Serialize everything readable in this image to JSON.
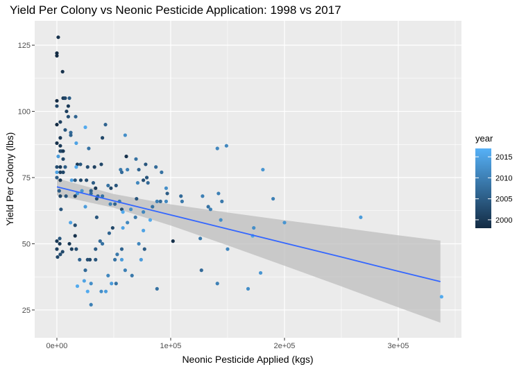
{
  "chart_data": {
    "type": "scatter",
    "title": "Yield Per Colony vs Neonic Pesticide Application: 1998 vs 2017",
    "xlabel": "Neonic Pesticide Applied (kgs)",
    "ylabel": "Yield Per Colony (lbs)",
    "xlim": [
      -19500,
      355500
    ],
    "ylim": [
      14.5,
      134.2
    ],
    "grid": true,
    "x_ticks": [
      0,
      100000,
      200000,
      300000
    ],
    "x_tick_labels": [
      "0e+00",
      "1e+05",
      "2e+05",
      "3e+05"
    ],
    "y_ticks": [
      25,
      50,
      75,
      100,
      125
    ],
    "y_tick_labels": [
      "25",
      "50",
      "75",
      "100",
      "125"
    ],
    "color_legend": {
      "title": "year",
      "range": [
        1998,
        2017
      ],
      "ticks": [
        2000,
        2005,
        2010,
        2015
      ],
      "tick_labels": [
        "2000",
        "2005",
        "2010",
        "2015"
      ],
      "low_color": "#132B43",
      "high_color": "#56B1F7",
      "placement": "right"
    },
    "point_fields": [
      "x",
      "y",
      "year"
    ],
    "points": [
      [
        1200,
        128,
        1999
      ],
      [
        0,
        122,
        1998
      ],
      [
        0,
        121,
        1998
      ],
      [
        5000,
        115,
        1999
      ],
      [
        5500,
        105,
        2000
      ],
      [
        6700,
        105,
        2001
      ],
      [
        7300,
        105,
        2002
      ],
      [
        11000,
        105,
        2005
      ],
      [
        0,
        104,
        1998
      ],
      [
        0,
        102,
        2002
      ],
      [
        10000,
        102,
        2000
      ],
      [
        8500,
        100,
        2001
      ],
      [
        10000,
        98,
        2003
      ],
      [
        16500,
        98,
        2006
      ],
      [
        0,
        95,
        1998
      ],
      [
        3000,
        96,
        2001
      ],
      [
        7300,
        93,
        2004
      ],
      [
        12200,
        92,
        2007
      ],
      [
        12200,
        91,
        2006
      ],
      [
        25000,
        94,
        2016
      ],
      [
        42700,
        95,
        2006
      ],
      [
        3000,
        90,
        2000
      ],
      [
        40000,
        90,
        2002
      ],
      [
        60000,
        91,
        2012
      ],
      [
        0,
        88,
        1999
      ],
      [
        17000,
        88,
        2015
      ],
      [
        3000,
        87,
        2000
      ],
      [
        28000,
        86,
        2008
      ],
      [
        3000,
        85,
        2001
      ],
      [
        4300,
        85,
        2003
      ],
      [
        5500,
        85,
        2000
      ],
      [
        1200,
        83,
        2014
      ],
      [
        5500,
        82,
        2002
      ],
      [
        61000,
        83,
        1999
      ],
      [
        69500,
        82,
        2008
      ],
      [
        18000,
        80,
        2000
      ],
      [
        20700,
        80,
        2004
      ],
      [
        0,
        79,
        2003
      ],
      [
        3000,
        79,
        2000
      ],
      [
        7300,
        79,
        2005
      ],
      [
        17000,
        79,
        2016
      ],
      [
        0,
        77,
        2015
      ],
      [
        3000,
        77,
        2001
      ],
      [
        5500,
        77,
        2002
      ],
      [
        27000,
        79,
        2003
      ],
      [
        33000,
        79,
        2001
      ],
      [
        39000,
        80,
        2002
      ],
      [
        56000,
        78,
        2009
      ],
      [
        57000,
        77,
        2007
      ],
      [
        72000,
        78,
        2006
      ],
      [
        78000,
        80,
        2004
      ],
      [
        62000,
        78,
        2010
      ],
      [
        87000,
        79,
        2007
      ],
      [
        92000,
        77,
        2008
      ],
      [
        79000,
        75,
        2004
      ],
      [
        0,
        75,
        2005
      ],
      [
        3000,
        74,
        2000
      ],
      [
        13000,
        74,
        2015
      ],
      [
        16000,
        74,
        2004
      ],
      [
        21000,
        74,
        2002
      ],
      [
        26000,
        74,
        2003
      ],
      [
        32000,
        73,
        2005
      ],
      [
        34000,
        71,
        2000
      ],
      [
        22000,
        70,
        2013
      ],
      [
        2000,
        70,
        2005
      ],
      [
        30000,
        70,
        2006
      ],
      [
        45000,
        72,
        2008
      ],
      [
        47500,
        71,
        2002
      ],
      [
        52000,
        72,
        2004
      ],
      [
        71000,
        73,
        2011
      ],
      [
        76000,
        74,
        2003
      ],
      [
        80000,
        73,
        2007
      ],
      [
        96000,
        71,
        2012
      ],
      [
        97000,
        69,
        2005
      ],
      [
        3000,
        68,
        2002
      ],
      [
        8000,
        68,
        2004
      ],
      [
        18000,
        69,
        2014
      ],
      [
        16000,
        68,
        2001
      ],
      [
        30000,
        69,
        2007
      ],
      [
        35000,
        67,
        2003
      ],
      [
        25000,
        64,
        2014
      ],
      [
        35000,
        60,
        2004
      ],
      [
        36000,
        68,
        2006
      ],
      [
        40000,
        68,
        2008
      ],
      [
        47000,
        65,
        2010
      ],
      [
        51000,
        65,
        2006
      ],
      [
        55000,
        66,
        2009
      ],
      [
        57000,
        63,
        2003
      ],
      [
        58000,
        62,
        2016
      ],
      [
        65000,
        63,
        2012
      ],
      [
        70000,
        67,
        2004
      ],
      [
        69000,
        60,
        2009
      ],
      [
        76000,
        62,
        2011
      ],
      [
        84000,
        64,
        2008
      ],
      [
        88000,
        66,
        2010
      ],
      [
        91000,
        66,
        2007
      ],
      [
        96000,
        66,
        2011
      ],
      [
        82000,
        59,
        2016
      ],
      [
        109000,
        68,
        2007
      ],
      [
        110000,
        66,
        2009
      ],
      [
        128000,
        68,
        2010
      ],
      [
        133000,
        64,
        2008
      ],
      [
        145000,
        66,
        2009
      ],
      [
        49000,
        56,
        2002
      ],
      [
        58000,
        56,
        2015
      ],
      [
        62000,
        58,
        2011
      ],
      [
        76000,
        55,
        2015
      ],
      [
        72000,
        50,
        2011
      ],
      [
        40000,
        50,
        2008
      ],
      [
        46000,
        54,
        2006
      ],
      [
        12000,
        58,
        2015
      ],
      [
        3600,
        63,
        2004
      ],
      [
        16000,
        57,
        2003
      ],
      [
        0,
        51,
        2000
      ],
      [
        0,
        48,
        2001
      ],
      [
        2500,
        52,
        2004
      ],
      [
        11000,
        50,
        2000
      ],
      [
        16000,
        53,
        1999
      ],
      [
        5000,
        47,
        2002
      ],
      [
        2500,
        50,
        2000
      ],
      [
        3000,
        46,
        2003
      ],
      [
        600,
        45,
        2002
      ],
      [
        13000,
        48,
        2001
      ],
      [
        17000,
        48,
        2003
      ],
      [
        20000,
        44,
        2006
      ],
      [
        34000,
        48,
        2005
      ],
      [
        38000,
        51,
        2007
      ],
      [
        34000,
        44,
        2004
      ],
      [
        29000,
        44,
        2002
      ],
      [
        25000,
        40,
        2007
      ],
      [
        27000,
        44,
        2003
      ],
      [
        51000,
        44,
        2008
      ],
      [
        57000,
        44,
        2014
      ],
      [
        57000,
        48,
        2006
      ],
      [
        53000,
        46,
        2009
      ],
      [
        74000,
        44,
        2014
      ],
      [
        77000,
        48,
        2005
      ],
      [
        66000,
        38,
        2009
      ],
      [
        60000,
        40,
        2010
      ],
      [
        48000,
        35,
        2014
      ],
      [
        52000,
        35,
        2008
      ],
      [
        18000,
        34,
        2016
      ],
      [
        24000,
        36,
        2015
      ],
      [
        27000,
        32,
        2016
      ],
      [
        30000,
        35,
        2012
      ],
      [
        43000,
        32,
        2014
      ],
      [
        39000,
        32,
        2012
      ],
      [
        45000,
        38,
        2011
      ],
      [
        30000,
        27,
        2010
      ],
      [
        88000,
        33,
        2008
      ],
      [
        141000,
        86,
        2011
      ],
      [
        149000,
        87,
        2011
      ],
      [
        181000,
        78,
        2013
      ],
      [
        190000,
        67,
        2010
      ],
      [
        142000,
        69,
        2010
      ],
      [
        135000,
        63,
        2010
      ],
      [
        144000,
        59,
        2012
      ],
      [
        200000,
        58,
        2013
      ],
      [
        267000,
        60,
        2014
      ],
      [
        173000,
        56,
        2012
      ],
      [
        172000,
        53,
        2015
      ],
      [
        126000,
        52,
        2009
      ],
      [
        150000,
        48,
        2011
      ],
      [
        127000,
        40,
        2007
      ],
      [
        141000,
        35,
        2010
      ],
      [
        168000,
        33,
        2012
      ],
      [
        179000,
        39,
        2013
      ],
      [
        338000,
        30,
        2016
      ],
      [
        102000,
        51,
        1999
      ]
    ],
    "smooth": {
      "method": "lm",
      "color": "#3366FF",
      "ribbon_color": "#BEBEBE",
      "x": [
        0,
        50000,
        100000,
        150000,
        200000,
        250000,
        300000,
        337000
      ],
      "fit": [
        71.5,
        66.2,
        60.9,
        55.6,
        50.3,
        45.0,
        39.6,
        35.7
      ],
      "lower": [
        68.3,
        63.6,
        56.9,
        49.4,
        41.7,
        33.9,
        26.0,
        20.2
      ],
      "upper": [
        74.7,
        68.8,
        64.9,
        61.8,
        58.9,
        56.1,
        53.2,
        51.2
      ]
    }
  }
}
